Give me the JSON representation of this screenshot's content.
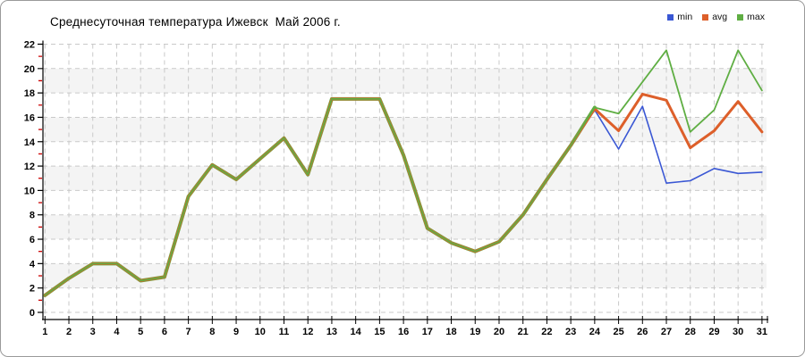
{
  "title": "Среднесуточная температура Ижевск  Май 2006 г.",
  "legend": {
    "position": "top-right",
    "items": [
      {
        "label": "min",
        "color": "#3a57d4"
      },
      {
        "label": "avg",
        "color": "#dd5f2a"
      },
      {
        "label": "max",
        "color": "#5fae43"
      }
    ]
  },
  "chart_data": {
    "type": "line",
    "title": "Среднесуточная температура Ижевск  Май 2006 г.",
    "xlabel": "",
    "ylabel": "",
    "x": [
      1,
      2,
      3,
      4,
      5,
      6,
      7,
      8,
      9,
      10,
      11,
      12,
      13,
      14,
      15,
      16,
      17,
      18,
      19,
      20,
      21,
      22,
      23,
      24,
      25,
      26,
      27,
      28,
      29,
      30,
      31
    ],
    "x_ticks": [
      1,
      2,
      3,
      4,
      5,
      6,
      7,
      8,
      9,
      10,
      11,
      12,
      13,
      14,
      15,
      16,
      17,
      18,
      19,
      20,
      21,
      22,
      23,
      24,
      25,
      26,
      27,
      28,
      29,
      30,
      31
    ],
    "ylim": [
      0,
      22
    ],
    "y_ticks": [
      0,
      2,
      4,
      6,
      8,
      10,
      12,
      14,
      16,
      18,
      20,
      22
    ],
    "y_minor_ticks": [
      1,
      3,
      5,
      7,
      9,
      11,
      13,
      15,
      17,
      19,
      21
    ],
    "grid": true,
    "band_color": "#f4f4f4",
    "grid_color": "#c9c9c9",
    "minor_tick_color": "#cc0000",
    "legend_position": "top-right",
    "series": [
      {
        "name": "min",
        "color": "#3a57d4",
        "values": [
          1.4,
          2.8,
          4,
          4,
          2.6,
          2.9,
          9.5,
          12.1,
          10.9,
          12.6,
          14.3,
          11.3,
          17.5,
          17.5,
          17.5,
          12.9,
          6.9,
          5.7,
          5,
          5.8,
          8,
          10.9,
          13.7,
          16.6,
          13.4,
          16.9,
          10.6,
          10.8,
          11.8,
          11.4,
          11.5
        ]
      },
      {
        "name": "avg",
        "color": "#dd5f2a",
        "values": [
          1.4,
          2.8,
          4,
          4,
          2.6,
          2.9,
          9.5,
          12.1,
          10.9,
          12.6,
          14.3,
          11.3,
          17.5,
          17.5,
          17.5,
          12.9,
          6.9,
          5.7,
          5,
          5.8,
          8,
          10.9,
          13.7,
          16.7,
          14.9,
          17.9,
          17.4,
          13.5,
          14.9,
          17.3,
          14.8
        ]
      },
      {
        "name": "max",
        "color": "#5fae43",
        "values": [
          1.4,
          2.8,
          4,
          4,
          2.6,
          2.9,
          9.5,
          12.1,
          10.9,
          12.6,
          14.3,
          11.3,
          17.5,
          17.5,
          17.5,
          12.9,
          6.9,
          5.7,
          5,
          5.8,
          8,
          10.9,
          13.7,
          16.8,
          16.3,
          18.9,
          21.5,
          14.8,
          16.6,
          21.5,
          18.2
        ]
      }
    ],
    "note_overlap": "min, avg and max coincide on days 1-23 and appear as a single olive-brown line"
  }
}
